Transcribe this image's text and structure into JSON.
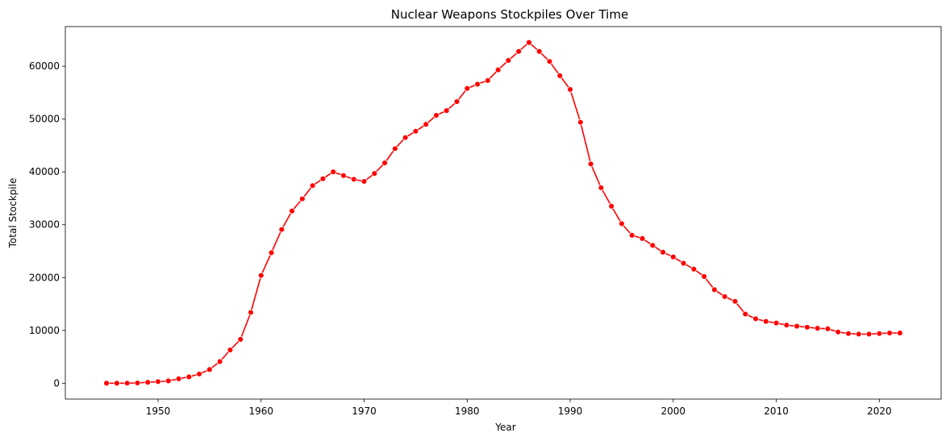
{
  "chart_data": {
    "type": "line",
    "title": "Nuclear Weapons Stockpiles Over Time",
    "xlabel": "Year",
    "ylabel": "Total Stockpile",
    "xlim": [
      1941,
      2026
    ],
    "ylim": [
      -3000,
      67500
    ],
    "xticks": [
      1950,
      1960,
      1970,
      1980,
      1990,
      2000,
      2010,
      2020
    ],
    "yticks": [
      0,
      10000,
      20000,
      30000,
      40000,
      50000,
      60000
    ],
    "grid": false,
    "legend": "none",
    "series": [
      {
        "color": "#ff0000",
        "marker": "circle",
        "x": [
          1945,
          1946,
          1947,
          1948,
          1949,
          1950,
          1951,
          1952,
          1953,
          1954,
          1955,
          1956,
          1957,
          1958,
          1959,
          1960,
          1961,
          1962,
          1963,
          1964,
          1965,
          1966,
          1967,
          1968,
          1969,
          1970,
          1971,
          1972,
          1973,
          1974,
          1975,
          1976,
          1977,
          1978,
          1979,
          1980,
          1981,
          1982,
          1983,
          1984,
          1985,
          1986,
          1987,
          1988,
          1989,
          1990,
          1991,
          1992,
          1993,
          1994,
          1995,
          1996,
          1997,
          1998,
          1999,
          2000,
          2001,
          2002,
          2003,
          2004,
          2005,
          2006,
          2007,
          2008,
          2009,
          2010,
          2011,
          2012,
          2013,
          2014,
          2015,
          2016,
          2017,
          2018,
          2019,
          2020,
          2021,
          2022
        ],
        "y": [
          2,
          9,
          13,
          50,
          170,
          300,
          440,
          840,
          1200,
          1750,
          2600,
          4100,
          6300,
          8300,
          13400,
          20400,
          24700,
          29100,
          32600,
          34900,
          37400,
          38700,
          40000,
          39300,
          38600,
          38200,
          39700,
          41700,
          44400,
          46500,
          47700,
          49000,
          50700,
          51600,
          53300,
          55800,
          56600,
          57300,
          59300,
          61100,
          62800,
          64500,
          62800,
          60900,
          58200,
          55600,
          49400,
          41500,
          37000,
          33500,
          30200,
          28000,
          27400,
          26100,
          24800,
          23900,
          22700,
          21600,
          20200,
          17700,
          16400,
          15500,
          13100,
          12200,
          11700,
          11400,
          11000,
          10800,
          10600,
          10400,
          10300,
          9700,
          9400,
          9300,
          9300,
          9400,
          9500,
          9500
        ]
      }
    ]
  }
}
